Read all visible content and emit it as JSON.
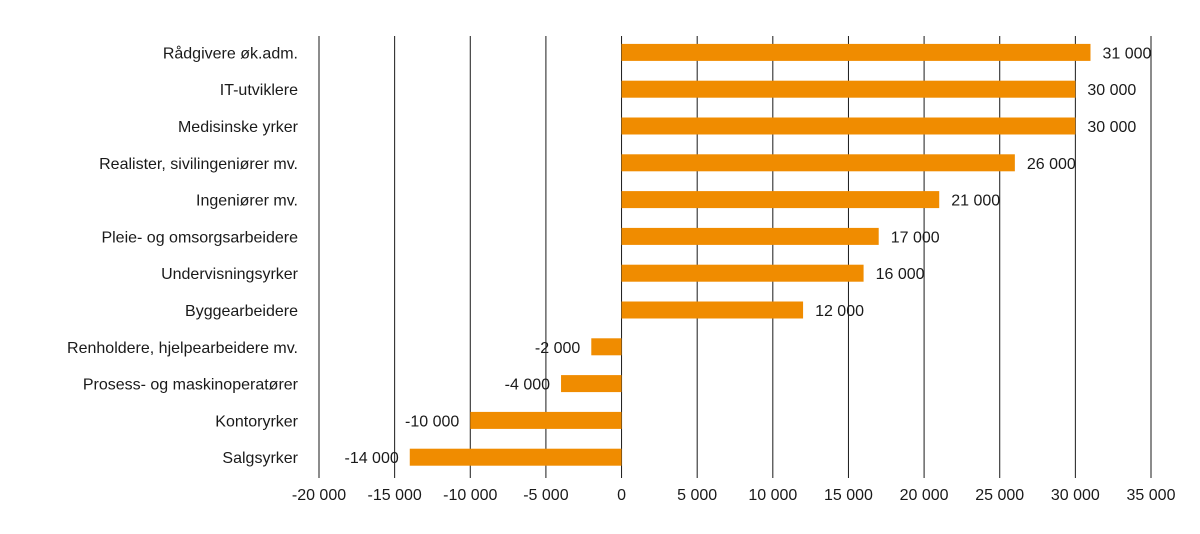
{
  "chart_data": {
    "type": "bar",
    "orientation": "horizontal",
    "categories": [
      "Rådgivere øk.adm.",
      "IT-utviklere",
      "Medisinske yrker",
      "Realister, sivilingeniører mv.",
      "Ingeniører mv.",
      "Pleie- og omsorgsarbeidere",
      "Undervisningsyrker",
      "Byggearbeidere",
      "Renholdere, hjelpearbeidere mv.",
      "Prosess- og maskinoperatører",
      "Kontoryrker",
      "Salgsyrker"
    ],
    "values": [
      31000,
      30000,
      30000,
      26000,
      21000,
      17000,
      16000,
      12000,
      -2000,
      -4000,
      -10000,
      -14000
    ],
    "value_labels": [
      "31 000",
      "30 000",
      "30 000",
      "26 000",
      "21 000",
      "17 000",
      "16 000",
      "12 000",
      "-2 000",
      "-4 000",
      "-10 000",
      "-14 000"
    ],
    "xlim": [
      -20000,
      35000
    ],
    "ticks": [
      -20000,
      -15000,
      -10000,
      -5000,
      0,
      5000,
      10000,
      15000,
      20000,
      25000,
      30000,
      35000
    ],
    "tick_labels": [
      "-20 000",
      "-15 000",
      "-10 000",
      "-5 000",
      "0",
      "5 000",
      "10 000",
      "15 000",
      "20 000",
      "25 000",
      "30 000",
      "35 000"
    ],
    "grid": true,
    "legend": "none",
    "title": "",
    "xlabel": "",
    "ylabel": "",
    "colors": {
      "bar": "#F08C00",
      "grid": "#1a1a1a",
      "text": "#1a1a1a"
    }
  }
}
